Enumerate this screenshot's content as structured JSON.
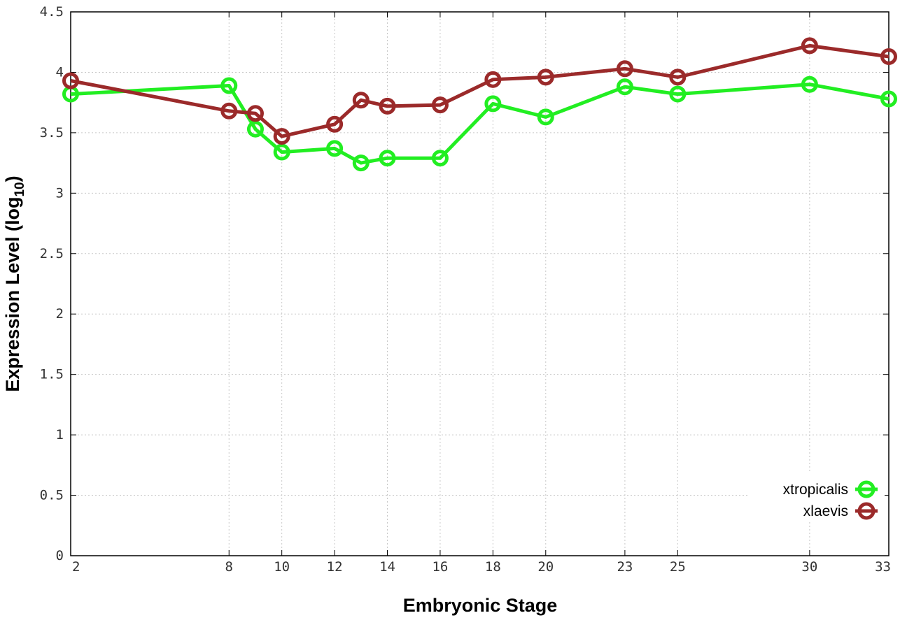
{
  "chart_data": {
    "type": "line",
    "xlabel": "Embryonic Stage",
    "ylabel": {
      "prefix": "Expression Level (log",
      "subscript": "10",
      "suffix": ")"
    },
    "ylim": [
      0,
      4.5
    ],
    "xlim": [
      2,
      33
    ],
    "x_ticks": [
      "2",
      "8",
      "10",
      "12",
      "14",
      "16",
      "18",
      "20",
      "23",
      "25",
      "30",
      "33"
    ],
    "y_ticks": [
      "0",
      "0.5",
      "1",
      "1.5",
      "2",
      "2.5",
      "3",
      "3.5",
      "4",
      "4.5"
    ],
    "grid": true,
    "legend_position": "bottom-right",
    "series": [
      {
        "name": "xtropicalis",
        "color": "#22ee22",
        "marker": "open-circle",
        "x": [
          2,
          8,
          9,
          10,
          12,
          13,
          14,
          16,
          18,
          20,
          23,
          25,
          30,
          33
        ],
        "y": [
          3.82,
          3.89,
          3.53,
          3.34,
          3.37,
          3.25,
          3.29,
          3.29,
          3.74,
          3.63,
          3.88,
          3.82,
          3.9,
          3.78
        ]
      },
      {
        "name": "xlaevis",
        "color": "#9b2a2a",
        "marker": "open-circle",
        "x": [
          2,
          8,
          9,
          10,
          12,
          13,
          14,
          16,
          18,
          20,
          23,
          25,
          30,
          33
        ],
        "y": [
          3.93,
          3.68,
          3.66,
          3.47,
          3.57,
          3.77,
          3.72,
          3.73,
          3.94,
          3.96,
          4.03,
          3.96,
          4.22,
          4.13
        ]
      }
    ]
  }
}
